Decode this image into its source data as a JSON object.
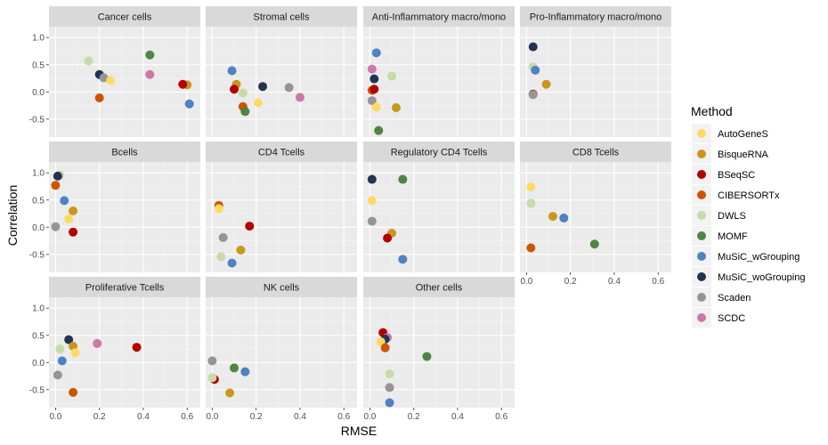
{
  "chart_data": {
    "type": "scatter",
    "xlabel": "RMSE",
    "ylabel": "Correlation",
    "xlim": [
      -0.03,
      0.66
    ],
    "ylim": [
      -0.83,
      1.2
    ],
    "xticks": [
      0.0,
      0.2,
      0.4,
      0.6
    ],
    "xtick_labels": [
      "0.0",
      "0.2",
      "0.4",
      "0.6"
    ],
    "yticks": [
      -0.5,
      0.0,
      0.5,
      1.0
    ],
    "ytick_labels": [
      "-0.5",
      "0.0",
      "0.5",
      "1.0"
    ],
    "grid": true,
    "legend": {
      "title": "Method",
      "position": "right",
      "entries": [
        {
          "name": "AutoGeneS",
          "color": "#FFD966"
        },
        {
          "name": "BisqueRNA",
          "color": "#C9971B"
        },
        {
          "name": "BSeqSC",
          "color": "#B30000"
        },
        {
          "name": "CIBERSORTx",
          "color": "#CC5500"
        },
        {
          "name": "DWLS",
          "color": "#C6DBA5"
        },
        {
          "name": "MOMF",
          "color": "#4E8542"
        },
        {
          "name": "MuSiC_wGrouping",
          "color": "#4D82C4"
        },
        {
          "name": "MuSiC_woGrouping",
          "color": "#243353"
        },
        {
          "name": "Scaden",
          "color": "#959595"
        },
        {
          "name": "SCDC",
          "color": "#CC79A7"
        }
      ]
    },
    "panels": [
      {
        "title": "Cancer cells",
        "points": [
          {
            "method": "DWLS",
            "x": 0.15,
            "y": 0.57
          },
          {
            "method": "MuSiC_woGrouping",
            "x": 0.2,
            "y": 0.32
          },
          {
            "method": "Scaden",
            "x": 0.22,
            "y": 0.26
          },
          {
            "method": "AutoGeneS",
            "x": 0.25,
            "y": 0.21
          },
          {
            "method": "CIBERSORTx",
            "x": 0.2,
            "y": -0.11
          },
          {
            "method": "MOMF",
            "x": 0.43,
            "y": 0.68
          },
          {
            "method": "SCDC",
            "x": 0.43,
            "y": 0.32
          },
          {
            "method": "BisqueRNA",
            "x": 0.6,
            "y": 0.13
          },
          {
            "method": "BSeqSC",
            "x": 0.58,
            "y": 0.14
          },
          {
            "method": "MuSiC_wGrouping",
            "x": 0.61,
            "y": -0.22
          }
        ]
      },
      {
        "title": "Stromal cells",
        "points": [
          {
            "method": "MuSiC_wGrouping",
            "x": 0.09,
            "y": 0.39
          },
          {
            "method": "BisqueRNA",
            "x": 0.11,
            "y": 0.14
          },
          {
            "method": "BSeqSC",
            "x": 0.1,
            "y": 0.05
          },
          {
            "method": "DWLS",
            "x": 0.14,
            "y": -0.02
          },
          {
            "method": "CIBERSORTx",
            "x": 0.14,
            "y": -0.27
          },
          {
            "method": "MOMF",
            "x": 0.15,
            "y": -0.36
          },
          {
            "method": "AutoGeneS",
            "x": 0.21,
            "y": -0.2
          },
          {
            "method": "MuSiC_woGrouping",
            "x": 0.23,
            "y": 0.1
          },
          {
            "method": "Scaden",
            "x": 0.35,
            "y": 0.08
          },
          {
            "method": "SCDC",
            "x": 0.4,
            "y": -0.1
          }
        ]
      },
      {
        "title": "Anti-Inflammatory macro/mono",
        "points": [
          {
            "method": "MuSiC_wGrouping",
            "x": 0.03,
            "y": 0.72
          },
          {
            "method": "SCDC",
            "x": 0.01,
            "y": 0.42
          },
          {
            "method": "DWLS",
            "x": 0.1,
            "y": 0.29
          },
          {
            "method": "MuSiC_woGrouping",
            "x": 0.02,
            "y": 0.24
          },
          {
            "method": "CIBERSORTx",
            "x": 0.01,
            "y": 0.03
          },
          {
            "method": "BSeqSC",
            "x": 0.02,
            "y": 0.05
          },
          {
            "method": "Scaden",
            "x": 0.01,
            "y": -0.16
          },
          {
            "method": "AutoGeneS",
            "x": 0.03,
            "y": -0.28
          },
          {
            "method": "BisqueRNA",
            "x": 0.12,
            "y": -0.29
          },
          {
            "method": "MOMF",
            "x": 0.04,
            "y": -0.71
          }
        ]
      },
      {
        "title": "Pro-Inflammatory macro/mono",
        "points": [
          {
            "method": "MuSiC_woGrouping",
            "x": 0.03,
            "y": 0.83
          },
          {
            "method": "DWLS",
            "x": 0.03,
            "y": 0.46
          },
          {
            "method": "MuSiC_wGrouping",
            "x": 0.04,
            "y": 0.4
          },
          {
            "method": "BisqueRNA",
            "x": 0.09,
            "y": 0.14
          },
          {
            "method": "BSeqSC",
            "x": 0.03,
            "y": -0.04
          },
          {
            "method": "Scaden",
            "x": 0.03,
            "y": -0.05
          }
        ]
      },
      {
        "title": "Bcells",
        "points": [
          {
            "method": "DWLS",
            "x": 0.02,
            "y": 0.96
          },
          {
            "method": "MuSiC_woGrouping",
            "x": 0.01,
            "y": 0.94
          },
          {
            "method": "CIBERSORTx",
            "x": 0.0,
            "y": 0.77
          },
          {
            "method": "MuSiC_wGrouping",
            "x": 0.04,
            "y": 0.49
          },
          {
            "method": "BisqueRNA",
            "x": 0.08,
            "y": 0.3
          },
          {
            "method": "AutoGeneS",
            "x": 0.06,
            "y": 0.15
          },
          {
            "method": "Scaden",
            "x": 0.0,
            "y": 0.01
          },
          {
            "method": "BSeqSC",
            "x": 0.08,
            "y": -0.09
          }
        ]
      },
      {
        "title": "CD4 Tcells",
        "points": [
          {
            "method": "CIBERSORTx",
            "x": 0.03,
            "y": 0.4
          },
          {
            "method": "AutoGeneS",
            "x": 0.03,
            "y": 0.34
          },
          {
            "method": "BSeqSC",
            "x": 0.17,
            "y": 0.02
          },
          {
            "method": "Scaden",
            "x": 0.05,
            "y": -0.19
          },
          {
            "method": "BisqueRNA",
            "x": 0.13,
            "y": -0.42
          },
          {
            "method": "DWLS",
            "x": 0.04,
            "y": -0.54
          },
          {
            "method": "MuSiC_wGrouping",
            "x": 0.09,
            "y": -0.66
          }
        ]
      },
      {
        "title": "Regulatory CD4 Tcells",
        "points": [
          {
            "method": "MuSiC_woGrouping",
            "x": 0.01,
            "y": 0.88
          },
          {
            "method": "MOMF",
            "x": 0.15,
            "y": 0.88
          },
          {
            "method": "AutoGeneS",
            "x": 0.01,
            "y": 0.49
          },
          {
            "method": "Scaden",
            "x": 0.01,
            "y": 0.11
          },
          {
            "method": "BisqueRNA",
            "x": 0.1,
            "y": -0.11
          },
          {
            "method": "BSeqSC",
            "x": 0.08,
            "y": -0.2
          },
          {
            "method": "MuSiC_wGrouping",
            "x": 0.15,
            "y": -0.59
          }
        ]
      },
      {
        "title": "CD8 Tcells",
        "points": [
          {
            "method": "AutoGeneS",
            "x": 0.02,
            "y": 0.74
          },
          {
            "method": "DWLS",
            "x": 0.02,
            "y": 0.44
          },
          {
            "method": "BisqueRNA",
            "x": 0.12,
            "y": 0.2
          },
          {
            "method": "MuSiC_wGrouping",
            "x": 0.17,
            "y": 0.17
          },
          {
            "method": "MOMF",
            "x": 0.31,
            "y": -0.31
          },
          {
            "method": "CIBERSORTx",
            "x": 0.02,
            "y": -0.38
          }
        ]
      },
      {
        "title": "Proliferative Tcells",
        "points": [
          {
            "method": "MuSiC_woGrouping",
            "x": 0.06,
            "y": 0.42
          },
          {
            "method": "SCDC",
            "x": 0.19,
            "y": 0.35
          },
          {
            "method": "BisqueRNA",
            "x": 0.08,
            "y": 0.3
          },
          {
            "method": "BSeqSC",
            "x": 0.37,
            "y": 0.28
          },
          {
            "method": "DWLS",
            "x": 0.02,
            "y": 0.25
          },
          {
            "method": "AutoGeneS",
            "x": 0.09,
            "y": 0.18
          },
          {
            "method": "MuSiC_wGrouping",
            "x": 0.03,
            "y": 0.03
          },
          {
            "method": "Scaden",
            "x": 0.01,
            "y": -0.23
          },
          {
            "method": "CIBERSORTx",
            "x": 0.08,
            "y": -0.55
          }
        ]
      },
      {
        "title": "NK cells",
        "points": [
          {
            "method": "Scaden",
            "x": 0.0,
            "y": 0.03
          },
          {
            "method": "MOMF",
            "x": 0.1,
            "y": -0.1
          },
          {
            "method": "MuSiC_wGrouping",
            "x": 0.15,
            "y": -0.17
          },
          {
            "method": "BSeqSC",
            "x": 0.01,
            "y": -0.31
          },
          {
            "method": "DWLS",
            "x": 0.0,
            "y": -0.28
          },
          {
            "method": "BisqueRNA",
            "x": 0.08,
            "y": -0.56
          }
        ]
      },
      {
        "title": "Other cells",
        "points": [
          {
            "method": "BSeqSC",
            "x": 0.06,
            "y": 0.55
          },
          {
            "method": "SCDC",
            "x": 0.08,
            "y": 0.46
          },
          {
            "method": "MuSiC_woGrouping",
            "x": 0.07,
            "y": 0.43
          },
          {
            "method": "AutoGeneS",
            "x": 0.05,
            "y": 0.38
          },
          {
            "method": "CIBERSORTx",
            "x": 0.07,
            "y": 0.27
          },
          {
            "method": "MOMF",
            "x": 0.26,
            "y": 0.11
          },
          {
            "method": "DWLS",
            "x": 0.09,
            "y": -0.21
          },
          {
            "method": "Scaden",
            "x": 0.09,
            "y": -0.46
          },
          {
            "method": "MuSiC_wGrouping",
            "x": 0.09,
            "y": -0.74
          }
        ]
      }
    ]
  }
}
